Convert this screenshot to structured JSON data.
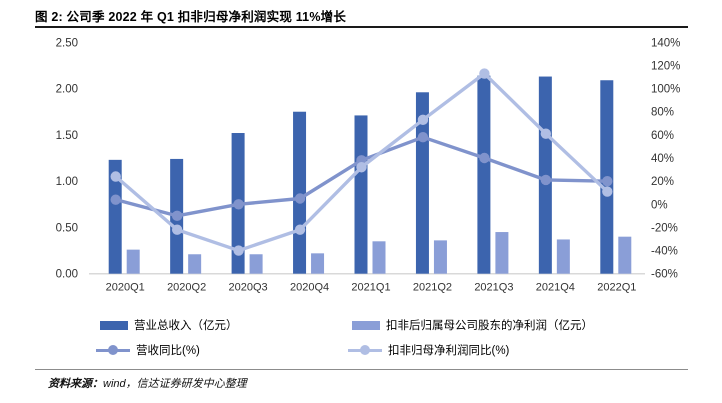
{
  "title": "图 2: 公司季 2022 年 Q1 扣非归母净利润实现 11%增长",
  "footer": {
    "prefix": "资料来源：",
    "text": "wind，信达证券研发中心整理"
  },
  "legend": [
    {
      "label": "营业总收入（亿元）",
      "swatch": "bar"
    },
    {
      "label": "扣非后归属母公司股东的净利润（亿元）",
      "swatch": "bar"
    },
    {
      "label": "营收同比(%)",
      "swatch": "line"
    },
    {
      "label": "扣非归母净利润同比(%)",
      "swatch": "line"
    }
  ],
  "chart_data": {
    "type": "bar",
    "subtype": "combo-bar-line-dual-axis",
    "categories": [
      "2020Q1",
      "2020Q2",
      "2020Q3",
      "2020Q4",
      "2021Q1",
      "2021Q2",
      "2021Q3",
      "2021Q4",
      "2022Q1"
    ],
    "series": [
      {
        "name": "营业总收入（亿元）",
        "type": "bar",
        "axis": "left",
        "color": "#3C64AE",
        "values": [
          1.23,
          1.24,
          1.52,
          1.75,
          1.71,
          1.96,
          2.14,
          2.13,
          2.09
        ]
      },
      {
        "name": "扣非后归属母公司股东的净利润（亿元）",
        "type": "bar",
        "axis": "left",
        "color": "#8A9ED7",
        "values": [
          0.26,
          0.21,
          0.21,
          0.22,
          0.35,
          0.36,
          0.45,
          0.37,
          0.4
        ]
      },
      {
        "name": "营收同比(%)",
        "type": "line",
        "axis": "right",
        "color": "#8093CC",
        "values": [
          4,
          -10,
          0,
          5,
          38,
          58,
          40,
          21,
          20
        ]
      },
      {
        "name": "扣非归母净利润同比(%)",
        "type": "line",
        "axis": "right",
        "color": "#B0BEE4",
        "values": [
          24,
          -22,
          -40,
          -22,
          32,
          73,
          113,
          61,
          11
        ]
      }
    ],
    "left_axis": {
      "min": 0.0,
      "max": 2.5,
      "ticks": [
        "0.00",
        "0.50",
        "1.00",
        "1.50",
        "2.00",
        "2.50"
      ]
    },
    "right_axis": {
      "min_pct": -60,
      "max_pct": 140,
      "ticks": [
        "-60%",
        "-40%",
        "-20%",
        "0%",
        "20%",
        "40%",
        "60%",
        "80%",
        "100%",
        "120%",
        "140%"
      ]
    },
    "grid": "off",
    "legend_position": "bottom",
    "baseline_color": "#D9D9D9",
    "axis_label_color": "#333333"
  }
}
